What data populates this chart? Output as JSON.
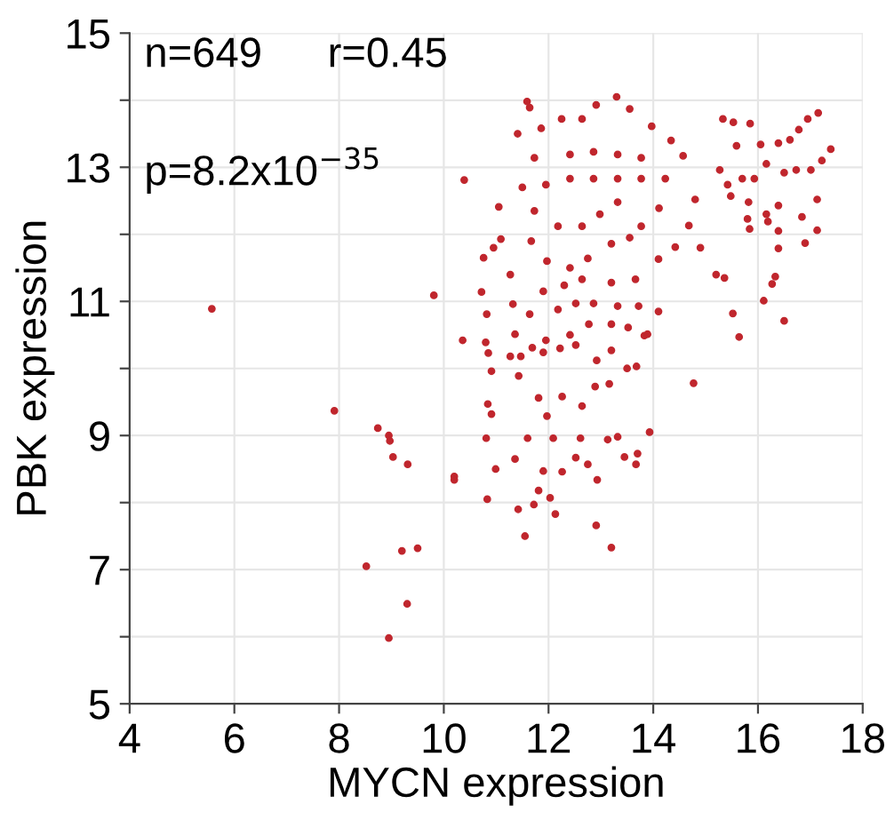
{
  "chart_data": {
    "type": "scatter",
    "xlabel": "MYCN expression",
    "ylabel": "PBK expression",
    "annotations": [
      "n=649",
      "r=0.45",
      "p=8.2x10$^{−35}$"
    ],
    "xlim": [
      4,
      18
    ],
    "xticks": [
      4,
      6,
      8,
      10,
      12,
      14,
      16,
      18
    ],
    "ylim": [
      5,
      15
    ],
    "yticks": [
      5,
      {
        "value": 6,
        "label": null
      },
      7,
      {
        "value": 8,
        "label": null
      },
      9,
      {
        "value": 10,
        "label": null
      },
      11,
      {
        "value": 12,
        "label": null
      },
      13,
      {
        "value": 14,
        "label": null
      },
      15
    ],
    "grid": true,
    "marker": "circle",
    "series": [
      {
        "color": "#c0262d",
        "x": [
          5.57,
          7.91,
          8.74,
          8.95,
          8.97,
          9.03,
          9.31,
          8.52,
          9.2,
          9.5,
          9.3,
          8.95,
          10.2,
          10.2,
          9.81,
          10.36,
          10.39,
          10.76,
          10.72,
          10.82,
          10.8,
          10.85,
          10.91,
          10.84,
          10.91,
          10.81,
          10.83,
          10.99,
          11.05,
          11.09,
          10.95,
          11.27,
          11.32,
          11.27,
          11.36,
          11.43,
          11.36,
          11.42,
          11.55,
          11.59,
          11.64,
          11.41,
          11.86,
          12.25,
          12.64,
          12.91,
          13.3,
          13.55,
          13.97,
          14.34,
          14.57,
          14.8,
          14.68,
          14.42,
          14.9,
          14.1,
          14.1,
          13.89,
          13.68,
          14.77,
          13.93,
          13.7,
          13.67,
          13.45,
          13.2,
          12.91,
          12.93,
          12.13,
          11.81,
          11.72,
          12.03,
          11.9,
          12.26,
          12.52,
          12.75,
          13.13,
          13.32,
          12.61,
          12.09,
          11.6,
          11.81,
          11.97,
          12.26,
          12.64,
          12.89,
          13.16,
          13.5,
          13.2,
          12.92,
          12.52,
          12.22,
          11.69,
          11.9,
          11.47,
          11.95,
          12.41,
          12.77,
          13.2,
          13.52,
          13.83,
          11.64,
          12.18,
          12.52,
          12.86,
          13.32,
          13.72,
          11.9,
          12.3,
          12.64,
          13.2,
          13.66,
          11.97,
          12.41,
          12.75,
          13.2,
          13.55,
          11.67,
          12.18,
          12.64,
          12.98,
          13.32,
          13.77,
          14.11,
          11.73,
          11.5,
          11.95,
          12.41,
          12.86,
          13.32,
          13.77,
          14.23,
          12.41,
          12.86,
          13.32,
          13.77,
          11.73,
          15.33,
          15.53,
          15.85,
          15.59,
          16.05,
          16.39,
          16.61,
          16.78,
          16.95,
          17.15,
          17.39,
          17.22,
          15.27,
          15.42,
          15.7,
          15.93,
          16.16,
          16.5,
          16.73,
          17.01,
          15.48,
          15.82,
          16.16,
          16.39,
          16.84,
          17.13,
          15.8,
          15.84,
          16.19,
          16.39,
          16.9,
          17.13,
          16.39,
          16.33,
          16.27,
          16.11,
          16.5,
          15.2,
          15.36,
          15.52,
          15.64
        ],
        "values": [
          10.89,
          9.37,
          9.11,
          9.0,
          8.92,
          8.68,
          8.57,
          7.05,
          7.28,
          7.32,
          6.49,
          5.98,
          8.39,
          8.34,
          11.09,
          10.42,
          12.81,
          11.65,
          11.14,
          10.81,
          10.39,
          10.23,
          9.96,
          9.47,
          9.32,
          8.96,
          8.05,
          8.5,
          12.41,
          11.93,
          11.8,
          11.4,
          10.96,
          10.18,
          10.51,
          9.89,
          8.65,
          7.9,
          7.5,
          13.98,
          13.89,
          13.5,
          13.58,
          13.72,
          13.72,
          13.93,
          14.05,
          13.87,
          13.61,
          13.4,
          13.17,
          12.52,
          12.13,
          11.81,
          11.8,
          11.63,
          10.85,
          10.51,
          10.03,
          9.78,
          9.05,
          8.73,
          8.57,
          8.68,
          7.33,
          7.66,
          8.34,
          7.83,
          8.18,
          7.97,
          8.07,
          8.47,
          8.46,
          8.67,
          8.57,
          8.94,
          8.98,
          8.96,
          8.96,
          8.96,
          9.56,
          9.29,
          9.58,
          9.44,
          9.73,
          9.77,
          10.0,
          10.27,
          10.12,
          10.35,
          10.3,
          10.31,
          10.24,
          10.18,
          10.42,
          10.5,
          10.66,
          10.66,
          10.61,
          10.49,
          10.81,
          10.88,
          10.97,
          10.97,
          10.93,
          10.93,
          11.15,
          11.24,
          11.33,
          11.28,
          11.33,
          11.6,
          11.5,
          11.64,
          11.86,
          11.95,
          11.9,
          12.12,
          12.12,
          12.3,
          12.48,
          12.12,
          12.39,
          12.35,
          12.7,
          12.74,
          12.83,
          12.83,
          12.83,
          12.83,
          12.83,
          13.19,
          13.23,
          13.19,
          13.14,
          13.14,
          13.72,
          13.67,
          13.65,
          13.32,
          13.34,
          13.36,
          13.41,
          13.56,
          13.72,
          13.81,
          13.27,
          13.1,
          12.96,
          12.74,
          12.83,
          12.83,
          13.05,
          12.92,
          12.96,
          12.96,
          12.57,
          12.48,
          12.3,
          12.43,
          12.26,
          12.52,
          12.23,
          12.08,
          12.19,
          12.05,
          11.87,
          12.06,
          11.79,
          11.37,
          11.26,
          11.01,
          10.71,
          11.4,
          11.35,
          10.82,
          10.47
        ]
      }
    ]
  }
}
